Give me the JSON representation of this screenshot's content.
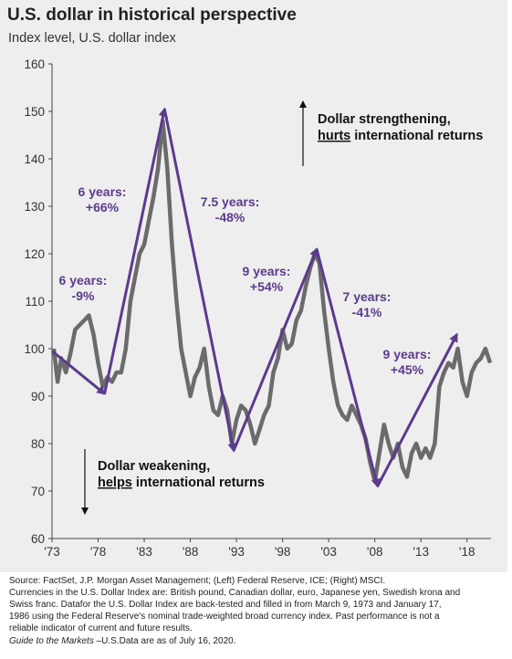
{
  "title": "U.S. dollar in historical perspective",
  "subtitle": "Index level, U.S. dollar index",
  "chart_data": {
    "type": "line",
    "x_tick_labels": [
      "'73",
      "'78",
      "'83",
      "'88",
      "'93",
      "'98",
      "'03",
      "'08",
      "'13",
      "'18"
    ],
    "x_tick_years": [
      1973,
      1978,
      1983,
      1988,
      1993,
      1998,
      2003,
      2008,
      2013,
      2018
    ],
    "y_ticks": [
      60,
      70,
      80,
      90,
      100,
      110,
      120,
      130,
      140,
      150,
      160
    ],
    "xlim": [
      1973,
      2020.6
    ],
    "ylim": [
      60,
      160
    ],
    "grid": false,
    "series": [
      {
        "color": "#6b6b6b",
        "points": [
          [
            1973.2,
            100
          ],
          [
            1973.6,
            93
          ],
          [
            1974.0,
            98
          ],
          [
            1974.5,
            95
          ],
          [
            1975.0,
            99
          ],
          [
            1975.5,
            104
          ],
          [
            1976.0,
            105
          ],
          [
            1976.5,
            106
          ],
          [
            1977.0,
            107
          ],
          [
            1977.5,
            103
          ],
          [
            1978.0,
            97
          ],
          [
            1978.5,
            92
          ],
          [
            1979.0,
            94
          ],
          [
            1979.5,
            93
          ],
          [
            1980.0,
            95
          ],
          [
            1980.5,
            95
          ],
          [
            1981.0,
            100
          ],
          [
            1981.5,
            110
          ],
          [
            1982.0,
            115
          ],
          [
            1982.5,
            120
          ],
          [
            1983.0,
            122
          ],
          [
            1983.5,
            127
          ],
          [
            1984.0,
            132
          ],
          [
            1984.5,
            138
          ],
          [
            1985.0,
            148
          ],
          [
            1985.5,
            138
          ],
          [
            1986.0,
            122
          ],
          [
            1986.5,
            110
          ],
          [
            1987.0,
            100
          ],
          [
            1987.5,
            95
          ],
          [
            1988.0,
            90
          ],
          [
            1988.5,
            94
          ],
          [
            1989.0,
            96
          ],
          [
            1989.5,
            100
          ],
          [
            1990.0,
            92
          ],
          [
            1990.5,
            87
          ],
          [
            1991.0,
            86
          ],
          [
            1991.5,
            90
          ],
          [
            1992.0,
            87
          ],
          [
            1992.5,
            80
          ],
          [
            1993.0,
            85
          ],
          [
            1993.5,
            88
          ],
          [
            1994.0,
            87
          ],
          [
            1994.5,
            84
          ],
          [
            1995.0,
            80
          ],
          [
            1995.5,
            83
          ],
          [
            1996.0,
            86
          ],
          [
            1996.5,
            88
          ],
          [
            1997.0,
            95
          ],
          [
            1997.5,
            98
          ],
          [
            1998.0,
            104
          ],
          [
            1998.5,
            100
          ],
          [
            1999.0,
            101
          ],
          [
            1999.5,
            106
          ],
          [
            2000.0,
            108
          ],
          [
            2000.5,
            113
          ],
          [
            2001.0,
            117
          ],
          [
            2001.5,
            120
          ],
          [
            2002.0,
            118
          ],
          [
            2002.5,
            108
          ],
          [
            2003.0,
            100
          ],
          [
            2003.5,
            93
          ],
          [
            2004.0,
            88
          ],
          [
            2004.5,
            86
          ],
          [
            2005.0,
            85
          ],
          [
            2005.5,
            88
          ],
          [
            2006.0,
            86
          ],
          [
            2006.5,
            84
          ],
          [
            2007.0,
            81
          ],
          [
            2007.5,
            76
          ],
          [
            2008.0,
            72
          ],
          [
            2008.5,
            78
          ],
          [
            2009.0,
            84
          ],
          [
            2009.5,
            80
          ],
          [
            2010.0,
            77
          ],
          [
            2010.5,
            80
          ],
          [
            2011.0,
            75
          ],
          [
            2011.5,
            73
          ],
          [
            2012.0,
            78
          ],
          [
            2012.5,
            80
          ],
          [
            2013.0,
            77
          ],
          [
            2013.5,
            79
          ],
          [
            2014.0,
            77
          ],
          [
            2014.5,
            80
          ],
          [
            2015.0,
            92
          ],
          [
            2015.5,
            95
          ],
          [
            2016.0,
            97
          ],
          [
            2016.5,
            96
          ],
          [
            2017.0,
            100
          ],
          [
            2017.5,
            93
          ],
          [
            2018.0,
            90
          ],
          [
            2018.5,
            95
          ],
          [
            2019.0,
            97
          ],
          [
            2019.5,
            98
          ],
          [
            2020.0,
            100
          ],
          [
            2020.5,
            97
          ]
        ]
      }
    ],
    "trend_arrows": [
      {
        "from": [
          1973.0,
          99.5
        ],
        "to": [
          1978.7,
          90.5
        ],
        "label_lines": [
          "6 years:",
          "-9%"
        ]
      },
      {
        "from": [
          1978.7,
          90.5
        ],
        "to": [
          1985.2,
          150.5
        ],
        "label_lines": [
          "6 years:",
          "+66%"
        ]
      },
      {
        "from": [
          1985.2,
          150.5
        ],
        "to": [
          1992.7,
          78.5
        ],
        "label_lines": [
          "7.5 years:",
          "-48%"
        ]
      },
      {
        "from": [
          1992.7,
          78.5
        ],
        "to": [
          2001.7,
          121
        ],
        "label_lines": [
          "9 years:",
          "+54%"
        ]
      },
      {
        "from": [
          2001.7,
          121
        ],
        "to": [
          2008.3,
          71
        ],
        "label_lines": [
          "7 years:",
          "-41%"
        ]
      },
      {
        "from": [
          2008.3,
          71
        ],
        "to": [
          2016.9,
          103
        ],
        "label_lines": [
          "9 years:",
          "+45%"
        ]
      }
    ],
    "annotation_up": {
      "line1": "Dollar strengthening,",
      "emph": "hurts",
      "rest": " international returns"
    },
    "annotation_down": {
      "line1": "Dollar weakening,",
      "emph": "helps",
      "rest": " international returns"
    }
  },
  "footnotes": [
    "Source: FactSet, J.P. Morgan Asset Management; (Left) Federal Reserve, ICE; (Right) MSCI.",
    "Currencies in the U.S. Dollar Index are: British pound, Canadian dollar, euro, Japanese yen, Swedish krona and",
    "Swiss franc. Datafor the U.S. Dollar Index are back-tested and filled in from March 9, 1973 and January 17,",
    "1986 using the Federal Reserve's nominal trade-weighted broad currency index. Past performance is not a",
    "reliable indicator of current and future results."
  ],
  "guide_italic": "Guide to the Markets",
  "guide_rest": " –U.S.Data are as of July 16, 2020.",
  "colors": {
    "arrow": "#5b3b8c",
    "label": "#5b3b8c",
    "line": "#6b6b6b",
    "background": "#eeeeee"
  }
}
